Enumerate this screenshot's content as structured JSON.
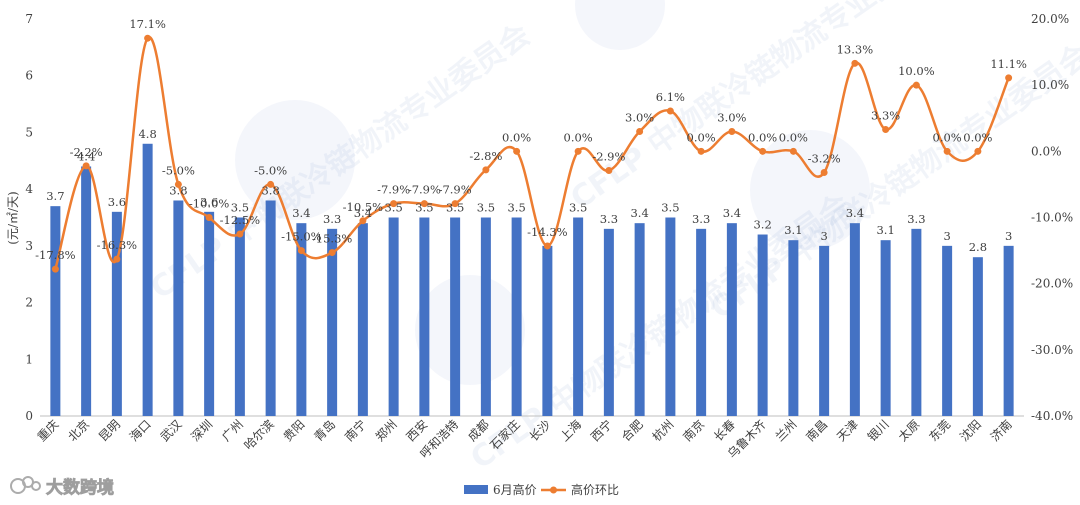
{
  "chart_data": {
    "type": "bar+line",
    "categories": [
      "重庆",
      "北京",
      "昆明",
      "海口",
      "武汉",
      "深圳",
      "广州",
      "哈尔滨",
      "贵阳",
      "青岛",
      "南宁",
      "郑州",
      "西安",
      "呼和浩特",
      "成都",
      "石家庄",
      "长沙",
      "上海",
      "西宁",
      "合肥",
      "杭州",
      "南京",
      "长春",
      "乌鲁木齐",
      "兰州",
      "南昌",
      "天津",
      "银川",
      "太原",
      "东莞",
      "沈阳",
      "济南"
    ],
    "series": [
      {
        "name": "6月高价",
        "type": "bar",
        "axis": "left",
        "color": "#4472C4",
        "values": [
          3.7,
          4.4,
          3.6,
          4.8,
          3.8,
          3.6,
          3.5,
          3.8,
          3.4,
          3.3,
          3.4,
          3.5,
          3.5,
          3.5,
          3.5,
          3.5,
          3,
          3.5,
          3.3,
          3.4,
          3.5,
          3.3,
          3.4,
          3.2,
          3.1,
          3,
          3.4,
          3.1,
          3.3,
          3,
          2.8,
          3
        ],
        "labels": [
          "3.7",
          "4.4",
          "3.6",
          "4.8",
          "3.8",
          "3.6",
          "3.5",
          "3.8",
          "3.4",
          "3.3",
          "3.4",
          "3.5",
          "3.5",
          "3.5",
          "3.5",
          "3.5",
          "",
          "3.5",
          "3.3",
          "3.4",
          "3.5",
          "3.3",
          "3.4",
          "3.2",
          "3.1",
          "3",
          "3.4",
          "3.1",
          "3.3",
          "3",
          "2.8",
          "3"
        ]
      },
      {
        "name": "高价环比",
        "type": "line",
        "axis": "right",
        "color": "#ED7D31",
        "values": [
          -17.8,
          -2.2,
          -16.3,
          17.1,
          -5.0,
          -10.0,
          -12.5,
          -5.0,
          -15.0,
          -15.3,
          -10.5,
          -7.9,
          -7.9,
          -7.9,
          -2.8,
          0.0,
          -14.3,
          0.0,
          -2.9,
          3.0,
          6.1,
          0.0,
          3.0,
          0.0,
          0.0,
          -3.2,
          13.3,
          3.3,
          10.0,
          0.0,
          0.0,
          11.1
        ],
        "labels": [
          "-17.8%",
          "-2.2%",
          "-16.3%",
          "17.1%",
          "-5.0%",
          "-10.0%",
          "-12.5%",
          "-5.0%",
          "-15.0%",
          "-15.3%",
          "-10.5%",
          "-7.9%",
          "-7.9%",
          "-7.9%",
          "-2.8%",
          "0.0%",
          "-14.3%",
          "0.0%",
          "-2.9%",
          "3.0%",
          "6.1%",
          "0.0%",
          "3.0%",
          "0.0%",
          "0.0%",
          "-3.2%",
          "13.3%",
          "3.3%",
          "10.0%",
          "0.0%",
          "0.0%",
          "11.1%"
        ]
      }
    ],
    "y_left": {
      "label": "(元/㎡/天)",
      "min": 0,
      "max": 7,
      "ticks": [
        "0",
        "1",
        "2",
        "3",
        "4",
        "5",
        "6",
        "7"
      ]
    },
    "y_right": {
      "min": -40,
      "max": 20,
      "ticks": [
        "-40.0%",
        "-30.0%",
        "-20.0%",
        "-10.0%",
        "0.0%",
        "10.0%",
        "20.0%"
      ]
    },
    "grid": false,
    "legend_position": "bottom"
  },
  "watermark": {
    "text": "CFLP 中物联冷链物流专业委员会",
    "color": "#6f8fc7"
  },
  "logo_text": "大数跨境"
}
